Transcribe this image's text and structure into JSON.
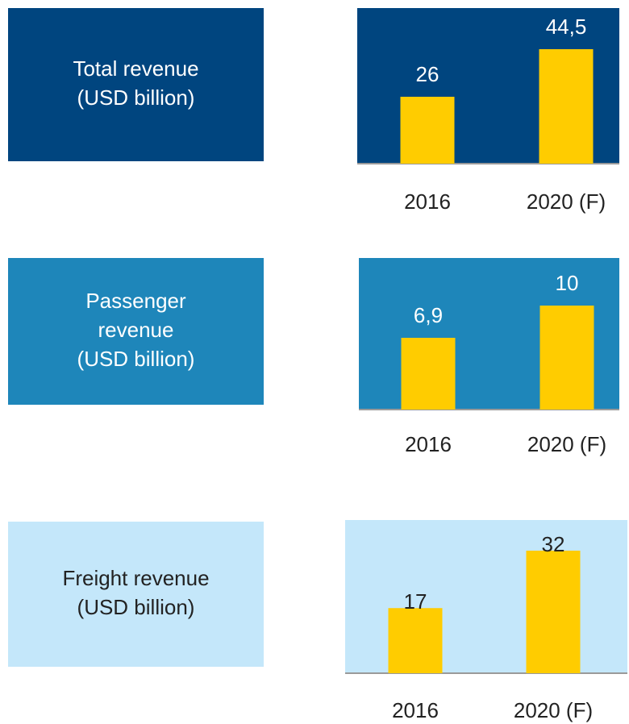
{
  "chart_data": [
    {
      "type": "bar",
      "title": [
        "Total revenue",
        "(USD billion)"
      ],
      "categories": [
        "2016",
        "2020 (F)"
      ],
      "values": [
        26,
        44.5
      ],
      "value_labels": [
        "26",
        "44,5"
      ],
      "color": "#ffcc00",
      "panel_color": "#00457f",
      "title_color": "#00457f"
    },
    {
      "type": "bar",
      "title": [
        "Passenger",
        "revenue",
        "(USD billion)"
      ],
      "categories": [
        "2016",
        "2020 (F)"
      ],
      "values": [
        6.9,
        10
      ],
      "value_labels": [
        "6,9",
        "10"
      ],
      "color": "#ffcc00",
      "panel_color": "#1e86ba",
      "title_color": "#1e86ba"
    },
    {
      "type": "bar",
      "title": [
        "Freight revenue",
        "(USD billion)"
      ],
      "categories": [
        "2016",
        "2020 (F)"
      ],
      "values": [
        17,
        32
      ],
      "value_labels": [
        "17",
        "32"
      ],
      "color": "#ffcc00",
      "panel_color": "#c4e7fa",
      "title_color": "#c4e7fa"
    }
  ]
}
